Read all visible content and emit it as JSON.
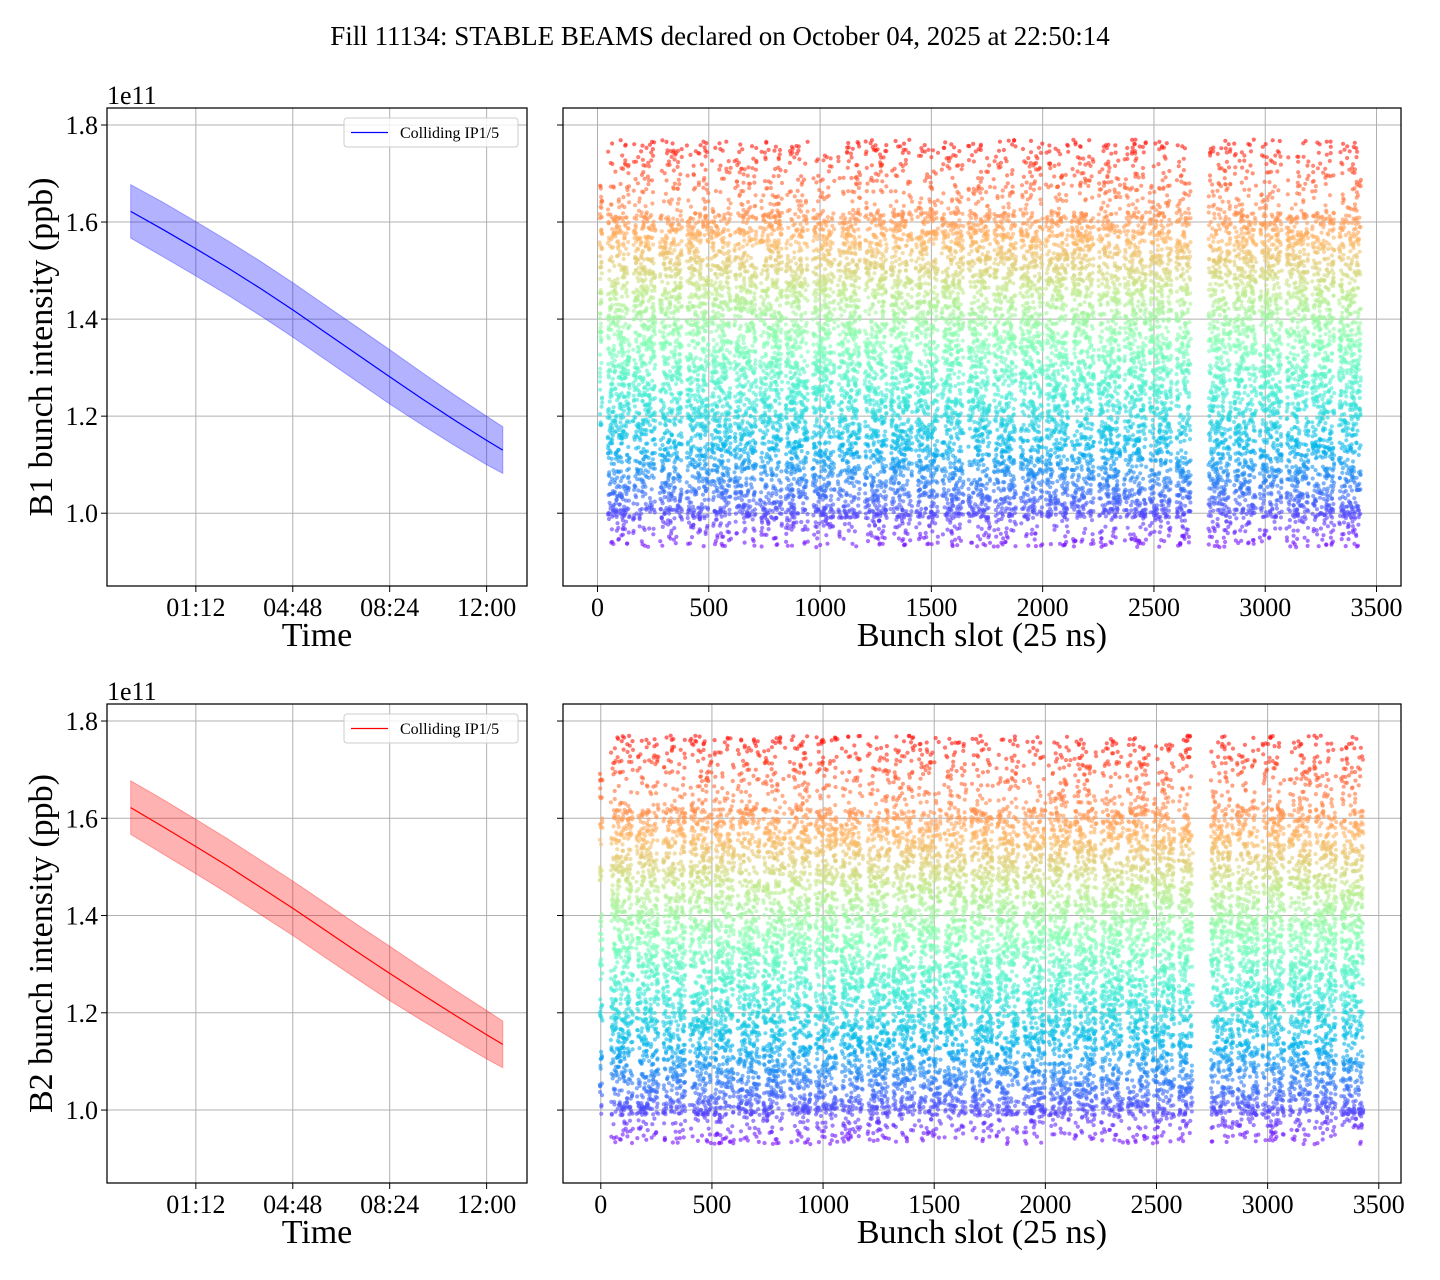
{
  "figure": {
    "title": "Fill 11134: STABLE BEAMS declared on October 04, 2025 at 22:50:14"
  },
  "colormap": {
    "name": "rainbow",
    "stops": [
      "#8000ff",
      "#4062fa",
      "#00b5eb",
      "#40ecd4",
      "#80ffb4",
      "#c0eb8d",
      "#ffb462",
      "#ff6232",
      "#ff0000"
    ]
  },
  "chart_data": [
    {
      "id": "b1-time",
      "type": "line",
      "title": "",
      "xlabel": "Time",
      "ylabel": "B1 bunch intensity (ppb)",
      "y_offset_text": "1e11",
      "xlim_hours": [
        -2.1,
        13.5
      ],
      "ylim": [
        0.85,
        1.835
      ],
      "xticks_hours": [
        1.2,
        4.8,
        8.4,
        12.0
      ],
      "xtick_labels": [
        "01:12",
        "04:48",
        "08:24",
        "12:00"
      ],
      "yticks": [
        1.0,
        1.2,
        1.4,
        1.6,
        1.8
      ],
      "ytick_labels": [
        "1.0",
        "1.2",
        "1.4",
        "1.6",
        "1.8"
      ],
      "grid": true,
      "legend": {
        "position": "top-right",
        "entries": [
          {
            "label": "Colliding IP1/5",
            "color": "#0000ff"
          }
        ]
      },
      "series": [
        {
          "name": "Colliding IP1/5",
          "color": "#0000ff",
          "band_color": "#0000ff",
          "band_alpha": 0.3,
          "x_hours": [
            -1.22,
            0.0,
            1.2,
            2.4,
            3.6,
            4.8,
            6.0,
            7.2,
            8.4,
            9.6,
            10.8,
            12.0,
            12.6
          ],
          "mean": [
            1.622,
            1.584,
            1.545,
            1.505,
            1.463,
            1.419,
            1.373,
            1.327,
            1.281,
            1.236,
            1.192,
            1.15,
            1.13
          ],
          "upper": [
            1.677,
            1.64,
            1.601,
            1.561,
            1.519,
            1.475,
            1.429,
            1.383,
            1.337,
            1.29,
            1.244,
            1.2,
            1.178
          ],
          "lower": [
            1.567,
            1.528,
            1.489,
            1.449,
            1.407,
            1.363,
            1.317,
            1.271,
            1.225,
            1.182,
            1.14,
            1.1,
            1.082
          ]
        }
      ]
    },
    {
      "id": "b1-slots",
      "type": "scatter",
      "xlabel": "Bunch slot (25 ns)",
      "ylabel": "",
      "xlim": [
        -155,
        3610
      ],
      "ylim": [
        0.85,
        1.835
      ],
      "xticks": [
        0,
        500,
        1000,
        1500,
        2000,
        2500,
        3000,
        3500
      ],
      "xtick_labels": [
        "0",
        "500",
        "1000",
        "1500",
        "2000",
        "2500",
        "3000",
        "3500"
      ],
      "yticks": [
        1.0,
        1.2,
        1.4,
        1.6,
        1.8
      ],
      "grid": true,
      "color_by": "intensity",
      "point_alpha": 0.6,
      "intensity_range": [
        0.92,
        1.78
      ],
      "pilot_train": {
        "slots": [
          10,
          22
        ],
        "range": [
          1.18,
          1.68
        ]
      },
      "trains": [
        [
          45,
          145
        ],
        [
          160,
          260
        ],
        [
          280,
          380
        ],
        [
          400,
          500
        ],
        [
          510,
          600
        ],
        [
          615,
          715
        ],
        [
          730,
          830
        ],
        [
          845,
          945
        ],
        [
          965,
          1065
        ],
        [
          1080,
          1180
        ],
        [
          1200,
          1300
        ],
        [
          1315,
          1415
        ],
        [
          1430,
          1530
        ],
        [
          1545,
          1645
        ],
        [
          1665,
          1765
        ],
        [
          1780,
          1880
        ],
        [
          1900,
          2000
        ],
        [
          2015,
          2115
        ],
        [
          2130,
          2230
        ],
        [
          2250,
          2350
        ],
        [
          2365,
          2465
        ],
        [
          2480,
          2580
        ],
        [
          2600,
          2665
        ],
        [
          2745,
          2845
        ],
        [
          2860,
          2960
        ],
        [
          2975,
          3075
        ],
        [
          3095,
          3195
        ],
        [
          3210,
          3310
        ],
        [
          3330,
          3430
        ]
      ]
    },
    {
      "id": "b2-time",
      "type": "line",
      "title": "",
      "xlabel": "Time",
      "ylabel": "B2 bunch intensity (ppb)",
      "y_offset_text": "1e11",
      "xlim_hours": [
        -2.1,
        13.5
      ],
      "ylim": [
        0.85,
        1.835
      ],
      "xticks_hours": [
        1.2,
        4.8,
        8.4,
        12.0
      ],
      "xtick_labels": [
        "01:12",
        "04:48",
        "08:24",
        "12:00"
      ],
      "yticks": [
        1.0,
        1.2,
        1.4,
        1.6,
        1.8
      ],
      "ytick_labels": [
        "1.0",
        "1.2",
        "1.4",
        "1.6",
        "1.8"
      ],
      "grid": true,
      "legend": {
        "position": "top-right",
        "entries": [
          {
            "label": "Colliding IP1/5",
            "color": "#ff0000"
          }
        ]
      },
      "series": [
        {
          "name": "Colliding IP1/5",
          "color": "#ff0000",
          "band_color": "#ff0000",
          "band_alpha": 0.3,
          "x_hours": [
            -1.22,
            0.0,
            1.2,
            2.4,
            3.6,
            4.8,
            6.0,
            7.2,
            8.4,
            9.6,
            10.8,
            12.0,
            12.6
          ],
          "mean": [
            1.622,
            1.582,
            1.542,
            1.501,
            1.458,
            1.415,
            1.37,
            1.325,
            1.281,
            1.238,
            1.196,
            1.155,
            1.135
          ],
          "upper": [
            1.677,
            1.638,
            1.598,
            1.557,
            1.514,
            1.471,
            1.426,
            1.381,
            1.337,
            1.292,
            1.248,
            1.205,
            1.183
          ],
          "lower": [
            1.567,
            1.526,
            1.486,
            1.445,
            1.402,
            1.359,
            1.314,
            1.269,
            1.225,
            1.184,
            1.144,
            1.105,
            1.087
          ]
        }
      ]
    },
    {
      "id": "b2-slots",
      "type": "scatter",
      "xlabel": "Bunch slot (25 ns)",
      "ylabel": "",
      "xlim": [
        -170,
        3600
      ],
      "ylim": [
        0.85,
        1.835
      ],
      "xticks": [
        0,
        500,
        1000,
        1500,
        2000,
        2500,
        3000,
        3500
      ],
      "xtick_labels": [
        "0",
        "500",
        "1000",
        "1500",
        "2000",
        "2500",
        "3000",
        "3500"
      ],
      "yticks": [
        1.0,
        1.2,
        1.4,
        1.6,
        1.8
      ],
      "grid": true,
      "color_by": "intensity",
      "point_alpha": 0.6,
      "intensity_range": [
        0.92,
        1.78
      ],
      "pilot_train": {
        "slots": [
          -5,
          8
        ],
        "range": [
          0.98,
          1.7
        ]
      },
      "trains": [
        [
          45,
          145
        ],
        [
          160,
          260
        ],
        [
          280,
          380
        ],
        [
          400,
          500
        ],
        [
          510,
          600
        ],
        [
          615,
          715
        ],
        [
          730,
          830
        ],
        [
          845,
          945
        ],
        [
          965,
          1065
        ],
        [
          1080,
          1180
        ],
        [
          1200,
          1300
        ],
        [
          1315,
          1415
        ],
        [
          1430,
          1530
        ],
        [
          1545,
          1645
        ],
        [
          1665,
          1765
        ],
        [
          1780,
          1880
        ],
        [
          1900,
          2000
        ],
        [
          2015,
          2115
        ],
        [
          2130,
          2230
        ],
        [
          2250,
          2350
        ],
        [
          2365,
          2465
        ],
        [
          2480,
          2580
        ],
        [
          2600,
          2665
        ],
        [
          2745,
          2845
        ],
        [
          2860,
          2960
        ],
        [
          2975,
          3075
        ],
        [
          3095,
          3195
        ],
        [
          3210,
          3310
        ],
        [
          3330,
          3430
        ]
      ]
    }
  ]
}
